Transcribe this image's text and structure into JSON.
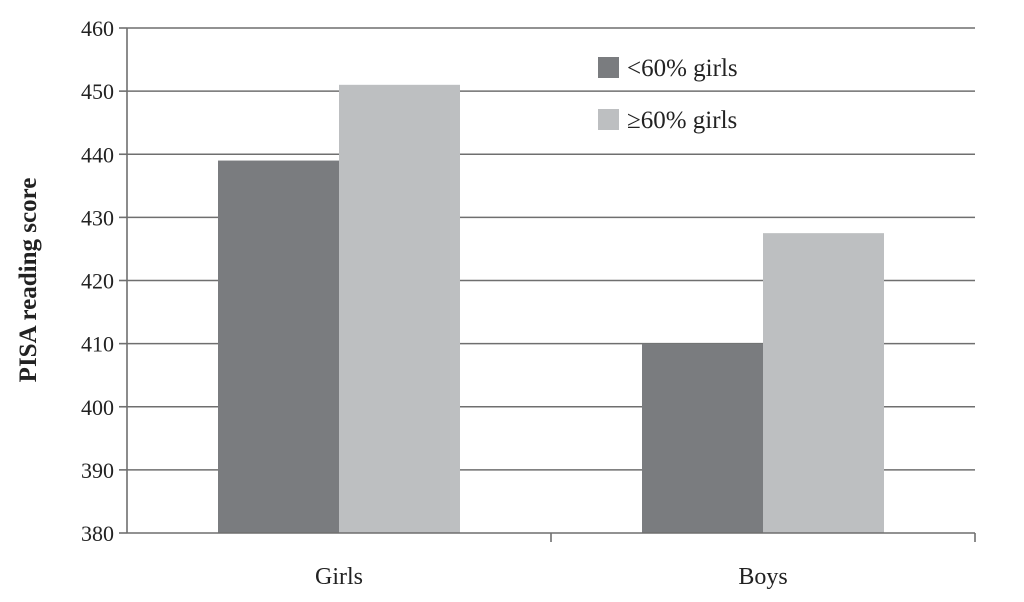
{
  "chart_data": {
    "type": "bar",
    "title": "",
    "xlabel": "",
    "ylabel": "PISA reading score",
    "categories": [
      "Girls",
      "Boys"
    ],
    "series": [
      {
        "name": "<60% girls",
        "values": [
          439,
          410
        ],
        "color": "#7a7c7f"
      },
      {
        "name": "≥60% girls",
        "values": [
          451,
          427.5
        ],
        "color": "#bdbfc1"
      }
    ],
    "ylim": [
      380,
      460
    ],
    "yticks": [
      "380",
      "390",
      "400",
      "410",
      "420",
      "430",
      "440",
      "450",
      "460"
    ],
    "grid": true,
    "legend_position": "top-right"
  }
}
